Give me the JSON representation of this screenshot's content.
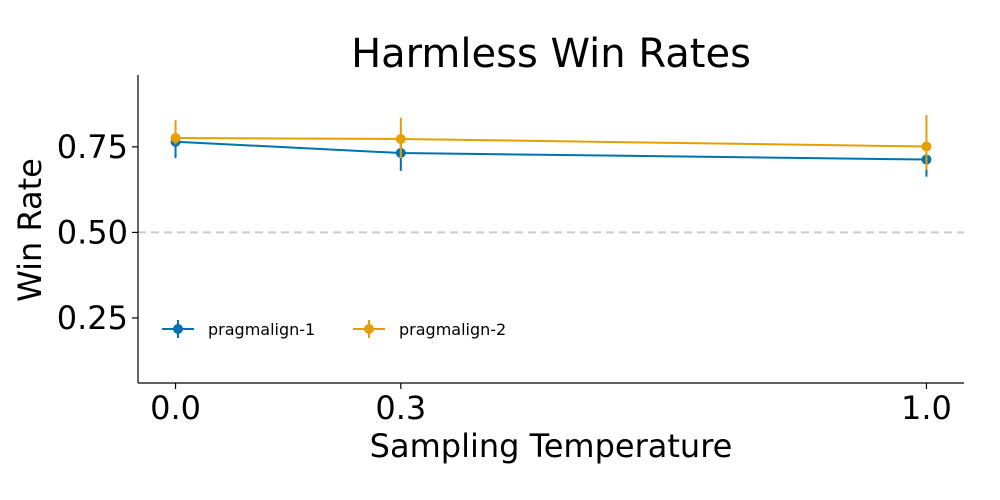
{
  "chart_data": {
    "type": "line",
    "title": "Harmless Win Rates",
    "xlabel": "Sampling Temperature",
    "ylabel": "Win Rate",
    "x": [
      0.0,
      0.3,
      1.0
    ],
    "x_tick_labels": [
      "0.0",
      "0.3",
      "1.0"
    ],
    "y_ticks": [
      0.25,
      0.5,
      0.75
    ],
    "y_tick_labels": [
      "0.25",
      "0.50",
      "0.75"
    ],
    "xlim": [
      -0.05,
      1.05
    ],
    "ylim": [
      0.06,
      0.96
    ],
    "reference_line": {
      "y": 0.5,
      "style": "dashed",
      "color": "#cccccc"
    },
    "legend_placement": "lower-left",
    "grid": false,
    "series": [
      {
        "name": "pragmalign-1",
        "color": "#0072b2",
        "values": [
          0.765,
          0.732,
          0.713
        ],
        "err_low": [
          0.717,
          0.68,
          0.663
        ],
        "err_high": [
          0.783,
          0.77,
          0.733
        ]
      },
      {
        "name": "pragmalign-2",
        "color": "#e69f00",
        "values": [
          0.776,
          0.773,
          0.751
        ],
        "err_low": [
          0.757,
          0.717,
          0.683
        ],
        "err_high": [
          0.828,
          0.835,
          0.843
        ]
      }
    ]
  }
}
